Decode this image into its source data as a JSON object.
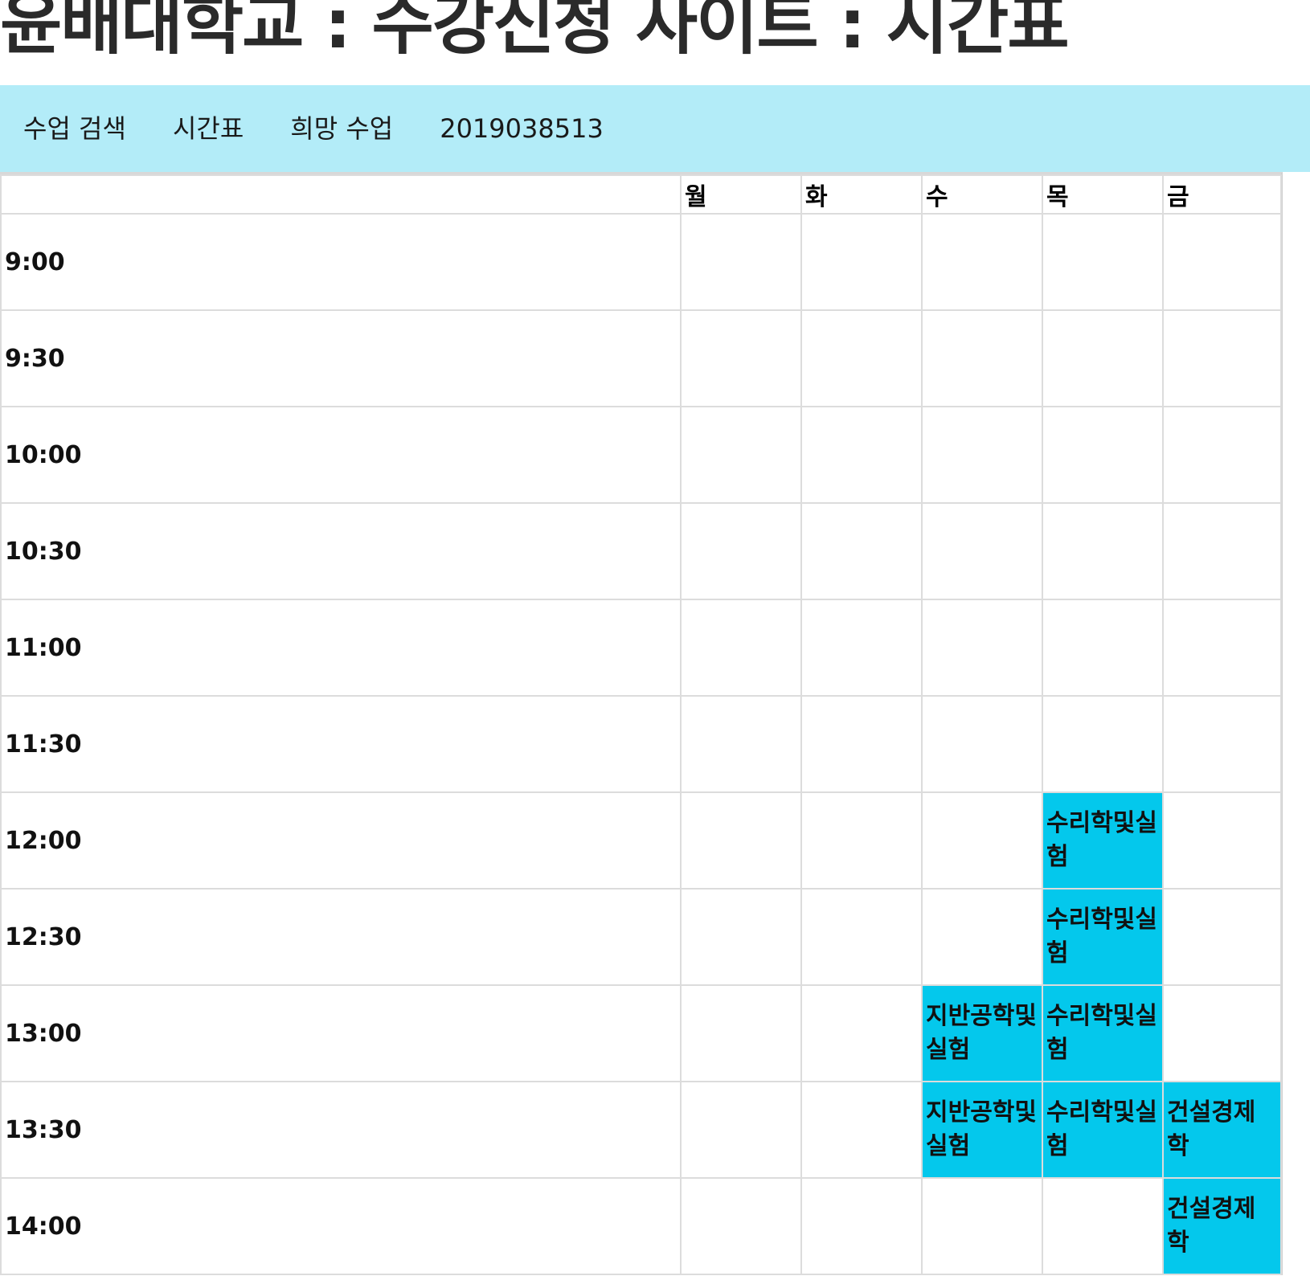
{
  "page": {
    "title": "윤배대학교 : 수강신청 사이트 : 시간표"
  },
  "nav": {
    "items": [
      {
        "label": "수업 검색"
      },
      {
        "label": "시간표"
      },
      {
        "label": "희망 수업"
      },
      {
        "label": "2019038513"
      }
    ]
  },
  "timetable": {
    "days": [
      "월",
      "화",
      "수",
      "목",
      "금"
    ],
    "rows": [
      {
        "time": "9:00",
        "cells": [
          "",
          "",
          "",
          "",
          ""
        ]
      },
      {
        "time": "9:30",
        "cells": [
          "",
          "",
          "",
          "",
          ""
        ]
      },
      {
        "time": "10:00",
        "cells": [
          "",
          "",
          "",
          "",
          ""
        ]
      },
      {
        "time": "10:30",
        "cells": [
          "",
          "",
          "",
          "",
          ""
        ]
      },
      {
        "time": "11:00",
        "cells": [
          "",
          "",
          "",
          "",
          ""
        ]
      },
      {
        "time": "11:30",
        "cells": [
          "",
          "",
          "",
          "",
          ""
        ]
      },
      {
        "time": "12:00",
        "cells": [
          "",
          "",
          "",
          "수리학및실험",
          ""
        ]
      },
      {
        "time": "12:30",
        "cells": [
          "",
          "",
          "",
          "수리학및실험",
          ""
        ]
      },
      {
        "time": "13:00",
        "cells": [
          "",
          "",
          "지반공학및실험",
          "수리학및실험",
          ""
        ]
      },
      {
        "time": "13:30",
        "cells": [
          "",
          "",
          "지반공학및실험",
          "수리학및실험",
          "건설경제학"
        ]
      },
      {
        "time": "14:00",
        "cells": [
          "",
          "",
          "",
          "",
          "건설경제학"
        ]
      }
    ]
  },
  "colors": {
    "nav_background": "#b3ecf8",
    "course_fill": "#04c8ec",
    "grid_border": "#dcdcdc"
  }
}
